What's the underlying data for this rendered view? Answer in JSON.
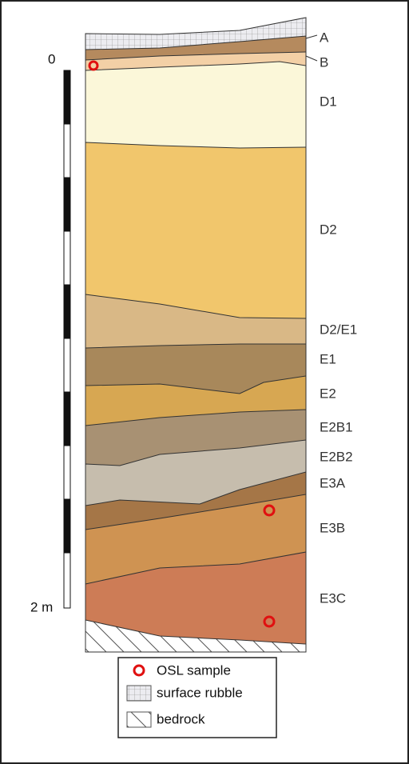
{
  "layers": [
    "A",
    "B",
    "D1",
    "D2",
    "D2/E1",
    "E1",
    "E2",
    "E2B1",
    "E2B2",
    "E3A",
    "E3B",
    "E3C"
  ],
  "scale": {
    "top": "0",
    "bottom": "2 m"
  },
  "legend": {
    "items": [
      "OSL sample",
      "surface rubble",
      "bedrock"
    ]
  }
}
